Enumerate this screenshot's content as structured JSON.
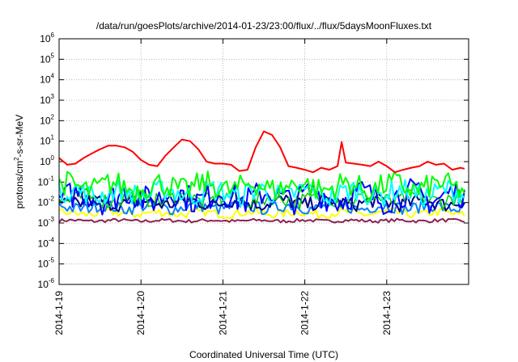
{
  "chart_data": {
    "type": "line",
    "title": "/data/run/goesPlots/archive/2014-01-23/23:00/flux/../flux/5daysMoonFluxes.txt",
    "xlabel": "Coordinated Universal Time (UTC)",
    "ylabel_parts": {
      "base": "protons/cm",
      "sup": "2",
      "rest": "-s-sr-MeV"
    },
    "y_scale": "log",
    "ylim_exponents": [
      -6,
      6
    ],
    "y_ticks": [
      {
        "base": "10",
        "exp": "-6"
      },
      {
        "base": "10",
        "exp": "-5"
      },
      {
        "base": "10",
        "exp": "-4"
      },
      {
        "base": "10",
        "exp": "-3"
      },
      {
        "base": "10",
        "exp": "-2"
      },
      {
        "base": "10",
        "exp": "-1"
      },
      {
        "base": "10",
        "exp": "0"
      },
      {
        "base": "10",
        "exp": "1"
      },
      {
        "base": "10",
        "exp": "2"
      },
      {
        "base": "10",
        "exp": "3"
      },
      {
        "base": "10",
        "exp": "4"
      },
      {
        "base": "10",
        "exp": "5"
      },
      {
        "base": "10",
        "exp": "6"
      }
    ],
    "x_ticks": [
      "2014-1-19",
      "2014-1-20",
      "2014-1-21",
      "2014-1-22",
      "2014-1-23"
    ],
    "x_range_days": [
      0,
      4.95
    ],
    "grid": true,
    "series": [
      {
        "color": "#ff0000",
        "width": 2,
        "x": [
          0,
          0.1,
          0.2,
          0.3,
          0.4,
          0.5,
          0.6,
          0.7,
          0.8,
          0.9,
          1.0,
          1.1,
          1.2,
          1.3,
          1.4,
          1.5,
          1.6,
          1.7,
          1.8,
          1.9,
          2.0,
          2.1,
          2.2,
          2.3,
          2.4,
          2.5,
          2.6,
          2.7,
          2.8,
          2.9,
          3.0,
          3.1,
          3.2,
          3.3,
          3.4,
          3.45,
          3.5,
          3.6,
          3.7,
          3.8,
          3.9,
          4.0,
          4.1,
          4.2,
          4.3,
          4.4,
          4.5,
          4.6,
          4.7,
          4.8,
          4.9,
          4.95
        ],
        "y": [
          1.5,
          0.7,
          0.8,
          1.5,
          2.5,
          4,
          6,
          6,
          5,
          3,
          1.2,
          0.7,
          0.6,
          2,
          5,
          12,
          10,
          4,
          1,
          0.8,
          0.8,
          0.7,
          0.35,
          0.4,
          5,
          30,
          20,
          5,
          0.6,
          0.5,
          0.4,
          0.3,
          0.5,
          0.4,
          0.6,
          9,
          0.9,
          0.8,
          0.7,
          0.6,
          1.0,
          0.6,
          0.3,
          0.4,
          0.5,
          0.6,
          1.0,
          0.7,
          0.8,
          0.4,
          0.5,
          0.45
        ]
      },
      {
        "color": "#00ff00",
        "width": 2,
        "center": 0.06,
        "amp": 0.6
      },
      {
        "color": "#00ffff",
        "width": 2,
        "center": 0.03,
        "amp": 0.55
      },
      {
        "color": "#0000ff",
        "width": 2,
        "center": 0.02,
        "amp": 0.7
      },
      {
        "color": "#00cc00",
        "width": 1.5,
        "center": 0.015,
        "amp": 0.4
      },
      {
        "color": "#00008b",
        "width": 2,
        "center": 0.01,
        "amp": 0.35
      },
      {
        "color": "#0080ff",
        "width": 2,
        "center": 0.006,
        "amp": 0.3
      },
      {
        "color": "#ffff00",
        "width": 2,
        "center": 0.003,
        "amp": 0.2
      },
      {
        "color": "#8b2252",
        "width": 2,
        "center": 0.0013,
        "amp": 0.08
      }
    ]
  }
}
